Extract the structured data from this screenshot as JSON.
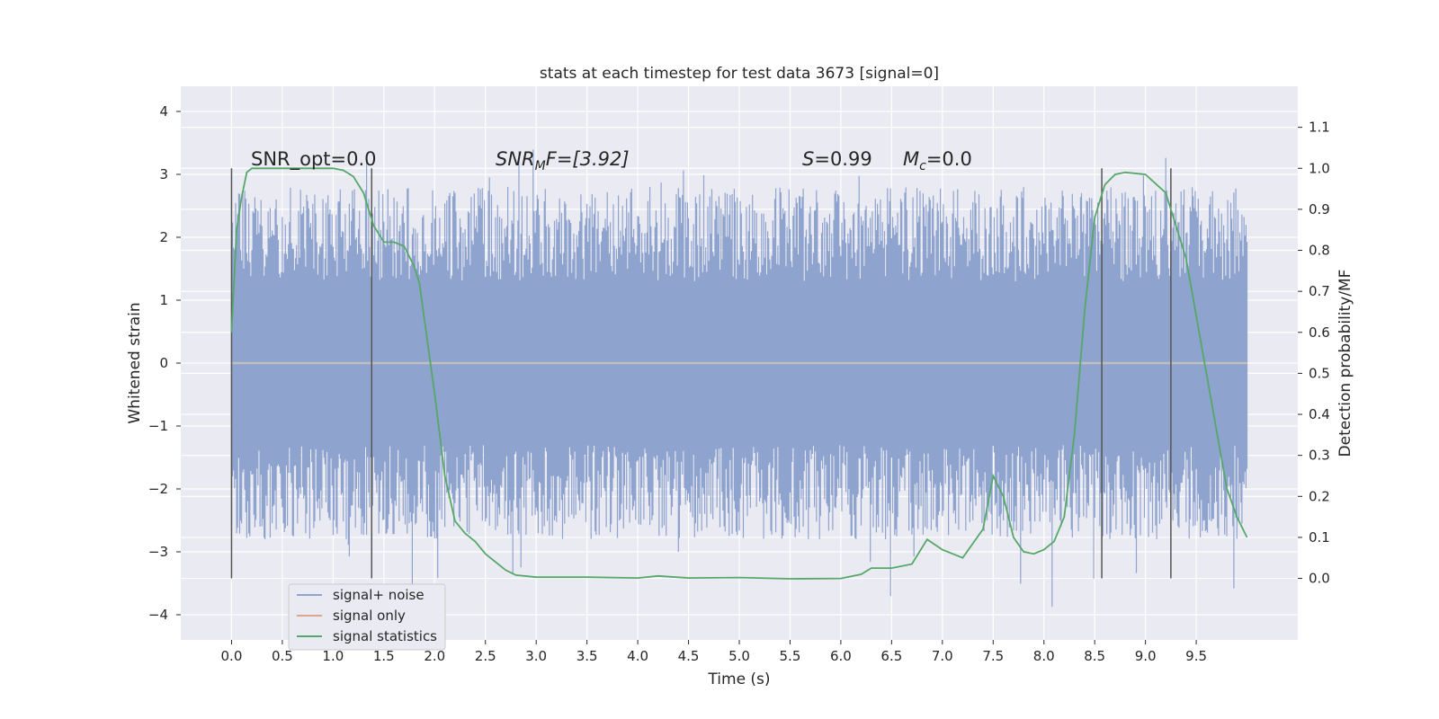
{
  "chart_data": {
    "type": "line",
    "title": "stats at each timestep for test data 3673 [signal=0]",
    "xlabel": "Time (s)",
    "ylabel_left": "Whitened strain",
    "ylabel_right": "Detection probability/MF",
    "xlim": [
      -0.5,
      10.5
    ],
    "ylim_left": [
      -4.4,
      4.4
    ],
    "ylim_right": [
      -0.15,
      1.2
    ],
    "x_ticks": [
      "0.0",
      "0.5",
      "1.0",
      "1.5",
      "2.0",
      "2.5",
      "3.0",
      "3.5",
      "4.0",
      "4.5",
      "5.0",
      "5.5",
      "6.0",
      "6.5",
      "7.0",
      "7.5",
      "8.0",
      "8.5",
      "9.0",
      "9.5"
    ],
    "y_left_ticks": [
      "4",
      "3",
      "2",
      "1",
      "0",
      "−1",
      "−2",
      "−3",
      "−4"
    ],
    "y_right_ticks": [
      "1.1",
      "1.0",
      "0.9",
      "0.8",
      "0.7",
      "0.6",
      "0.5",
      "0.4",
      "0.3",
      "0.2",
      "0.1",
      "0.0"
    ],
    "grid": true,
    "legend_position": "lower-left",
    "annotations": {
      "snr_opt": "SNR_opt=0.0",
      "snr_mf_base": "SNR",
      "snr_mf_sub": "M",
      "snr_mf_rest": "F=[3.92]",
      "s_var": "S",
      "s_val": "=0.99",
      "mc_base": "M",
      "mc_sub": "c",
      "mc_val": "=0.0"
    },
    "vertical_markers_x": [
      0.0,
      1.38,
      8.57,
      9.25
    ],
    "series": [
      {
        "name": "signal+ noise",
        "color": "#8fa3cf",
        "note": "noise trace, amplitude roughly within ±3, spikes up to ~4"
      },
      {
        "name": "signal only",
        "color": "#e0a58d",
        "values": "zero across entire range"
      },
      {
        "name": "signal statistics",
        "color": "#55a868",
        "x": [
          0.0,
          0.05,
          0.1,
          0.15,
          0.2,
          0.3,
          0.5,
          0.7,
          0.9,
          1.0,
          1.1,
          1.2,
          1.3,
          1.4,
          1.5,
          1.6,
          1.7,
          1.8,
          1.85,
          1.9,
          2.0,
          2.1,
          2.2,
          2.3,
          2.4,
          2.5,
          2.6,
          2.7,
          2.8,
          3.0,
          3.5,
          4.0,
          4.2,
          4.5,
          5.0,
          5.5,
          6.0,
          6.2,
          6.3,
          6.5,
          6.7,
          6.85,
          7.0,
          7.2,
          7.4,
          7.5,
          7.6,
          7.7,
          7.8,
          7.9,
          8.0,
          8.1,
          8.2,
          8.3,
          8.4,
          8.5,
          8.6,
          8.7,
          8.8,
          9.0,
          9.2,
          9.4,
          9.6,
          9.8,
          9.9,
          10.0
        ],
        "y": [
          0.6,
          0.85,
          0.93,
          0.99,
          1.0,
          1.0,
          1.0,
          1.0,
          1.0,
          1.0,
          0.995,
          0.98,
          0.94,
          0.86,
          0.82,
          0.82,
          0.81,
          0.76,
          0.72,
          0.63,
          0.45,
          0.25,
          0.14,
          0.11,
          0.09,
          0.06,
          0.04,
          0.02,
          0.008,
          0.003,
          0.003,
          0.001,
          0.006,
          0.001,
          0.002,
          -0.001,
          0.0,
          0.01,
          0.025,
          0.025,
          0.035,
          0.095,
          0.07,
          0.05,
          0.12,
          0.25,
          0.2,
          0.1,
          0.065,
          0.06,
          0.07,
          0.09,
          0.15,
          0.35,
          0.65,
          0.88,
          0.96,
          0.985,
          0.99,
          0.985,
          0.94,
          0.78,
          0.5,
          0.22,
          0.15,
          0.1
        ]
      }
    ]
  }
}
